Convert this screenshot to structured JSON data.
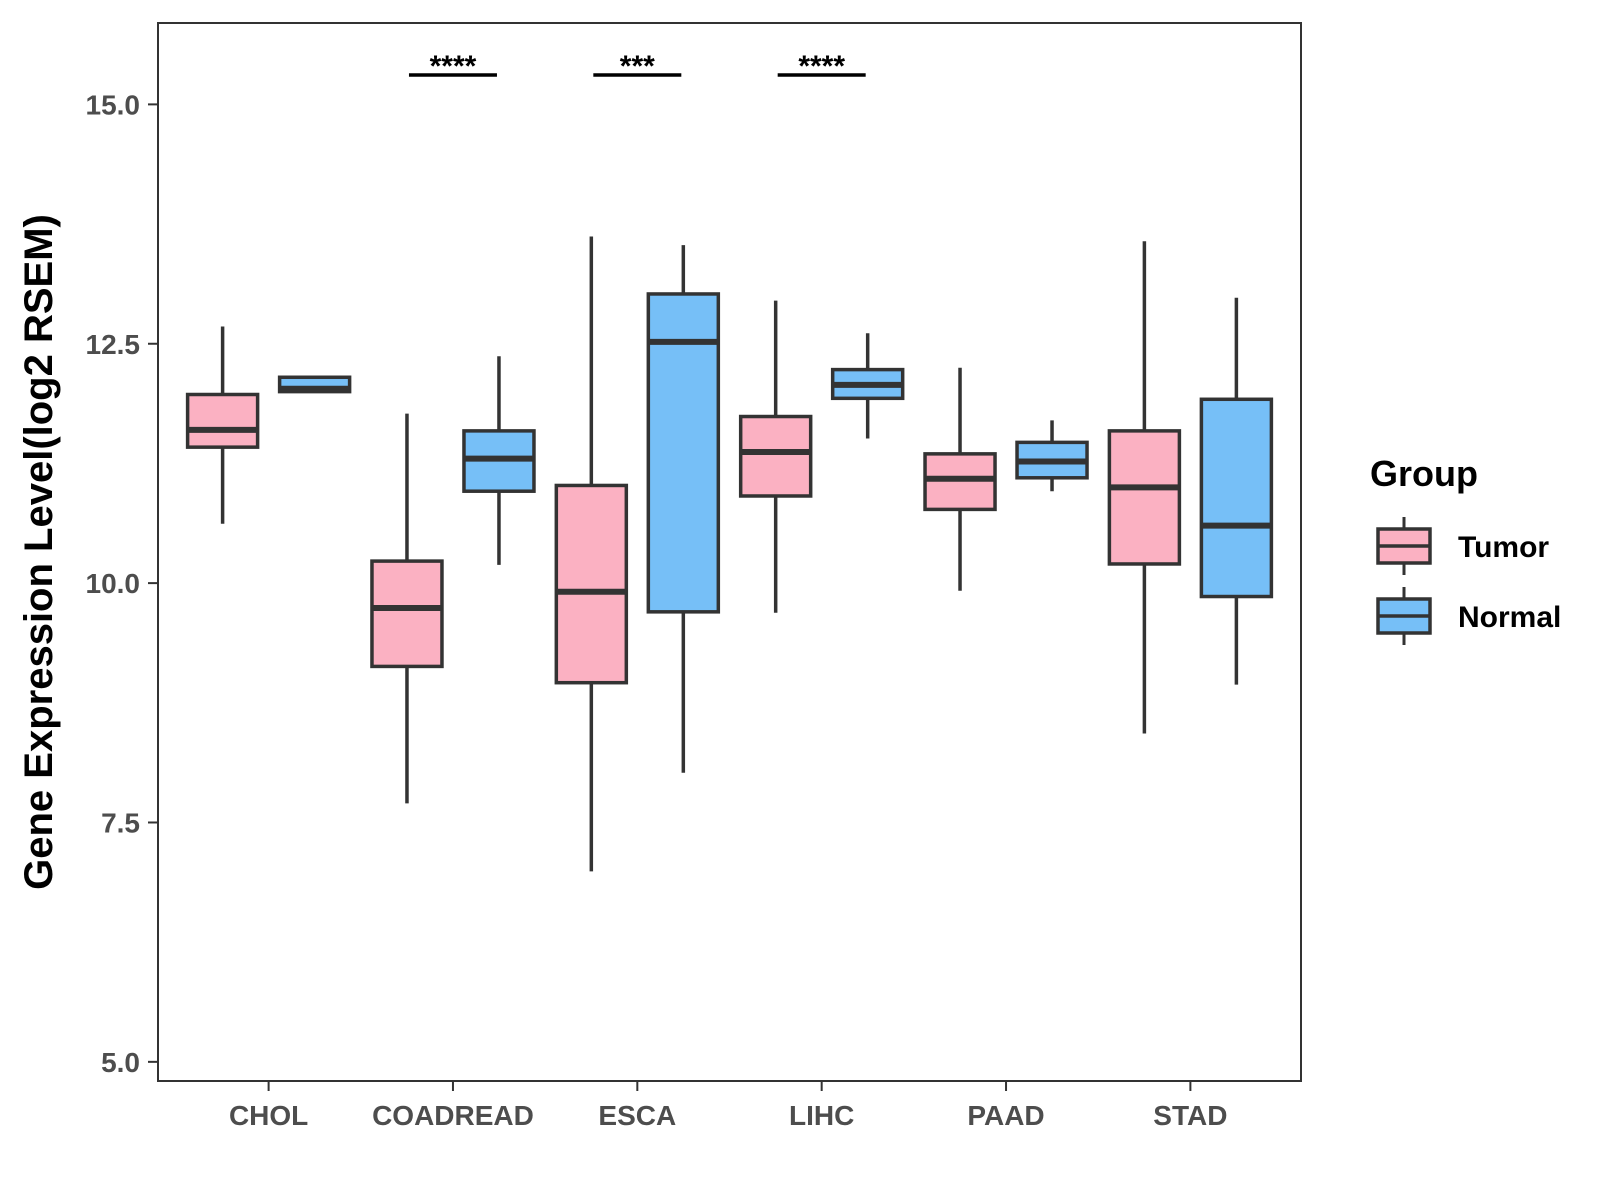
{
  "chart_data": {
    "type": "boxplot",
    "title": "",
    "xlabel": "",
    "ylabel": "Gene Expression Level(log2 RSEM)",
    "ylim": [
      4.8,
      15.85
    ],
    "yticks": [
      5.0,
      7.5,
      10.0,
      12.5,
      15.0
    ],
    "ytick_labels": [
      "5.0",
      "7.5",
      "10.0",
      "12.5",
      "15.0"
    ],
    "grid": false,
    "categories": [
      "CHOL",
      "COADREAD",
      "ESCA",
      "LIHC",
      "PAAD",
      "STAD"
    ],
    "legend": {
      "title": "Group",
      "position": "right",
      "entries": [
        "Tumor",
        "Normal"
      ]
    },
    "series": [
      {
        "name": "Tumor",
        "color": "#fbb1c2",
        "boxes": [
          {
            "category": "CHOL",
            "low": 10.62,
            "q1": 11.42,
            "median": 11.6,
            "q3": 11.97,
            "high": 12.68
          },
          {
            "category": "COADREAD",
            "low": 7.7,
            "q1": 9.13,
            "median": 9.74,
            "q3": 10.23,
            "high": 11.77
          },
          {
            "category": "ESCA",
            "low": 6.99,
            "q1": 8.96,
            "median": 9.91,
            "q3": 11.02,
            "high": 13.62
          },
          {
            "category": "LIHC",
            "low": 9.69,
            "q1": 10.91,
            "median": 11.37,
            "q3": 11.74,
            "high": 12.95
          },
          {
            "category": "PAAD",
            "low": 9.92,
            "q1": 10.77,
            "median": 11.09,
            "q3": 11.35,
            "high": 12.25
          },
          {
            "category": "STAD",
            "low": 8.43,
            "q1": 10.2,
            "median": 11.0,
            "q3": 11.59,
            "high": 13.57
          }
        ]
      },
      {
        "name": "Normal",
        "color": "#76bff7",
        "boxes": [
          {
            "category": "CHOL",
            "low": 12.0,
            "q1": 12.0,
            "median": 12.03,
            "q3": 12.15,
            "high": 12.15
          },
          {
            "category": "COADREAD",
            "low": 10.19,
            "q1": 10.96,
            "median": 11.3,
            "q3": 11.59,
            "high": 12.37
          },
          {
            "category": "ESCA",
            "low": 8.02,
            "q1": 9.7,
            "median": 12.52,
            "q3": 13.02,
            "high": 13.53
          },
          {
            "category": "LIHC",
            "low": 11.51,
            "q1": 11.93,
            "median": 12.07,
            "q3": 12.23,
            "high": 12.61
          },
          {
            "category": "PAAD",
            "low": 10.96,
            "q1": 11.1,
            "median": 11.27,
            "q3": 11.47,
            "high": 11.7
          },
          {
            "category": "STAD",
            "low": 8.94,
            "q1": 9.86,
            "median": 10.6,
            "q3": 11.92,
            "high": 12.98
          }
        ]
      }
    ],
    "annotations": [
      {
        "category": "COADREAD",
        "label": "****"
      },
      {
        "category": "ESCA",
        "label": "***"
      },
      {
        "category": "LIHC",
        "label": "****"
      }
    ]
  }
}
